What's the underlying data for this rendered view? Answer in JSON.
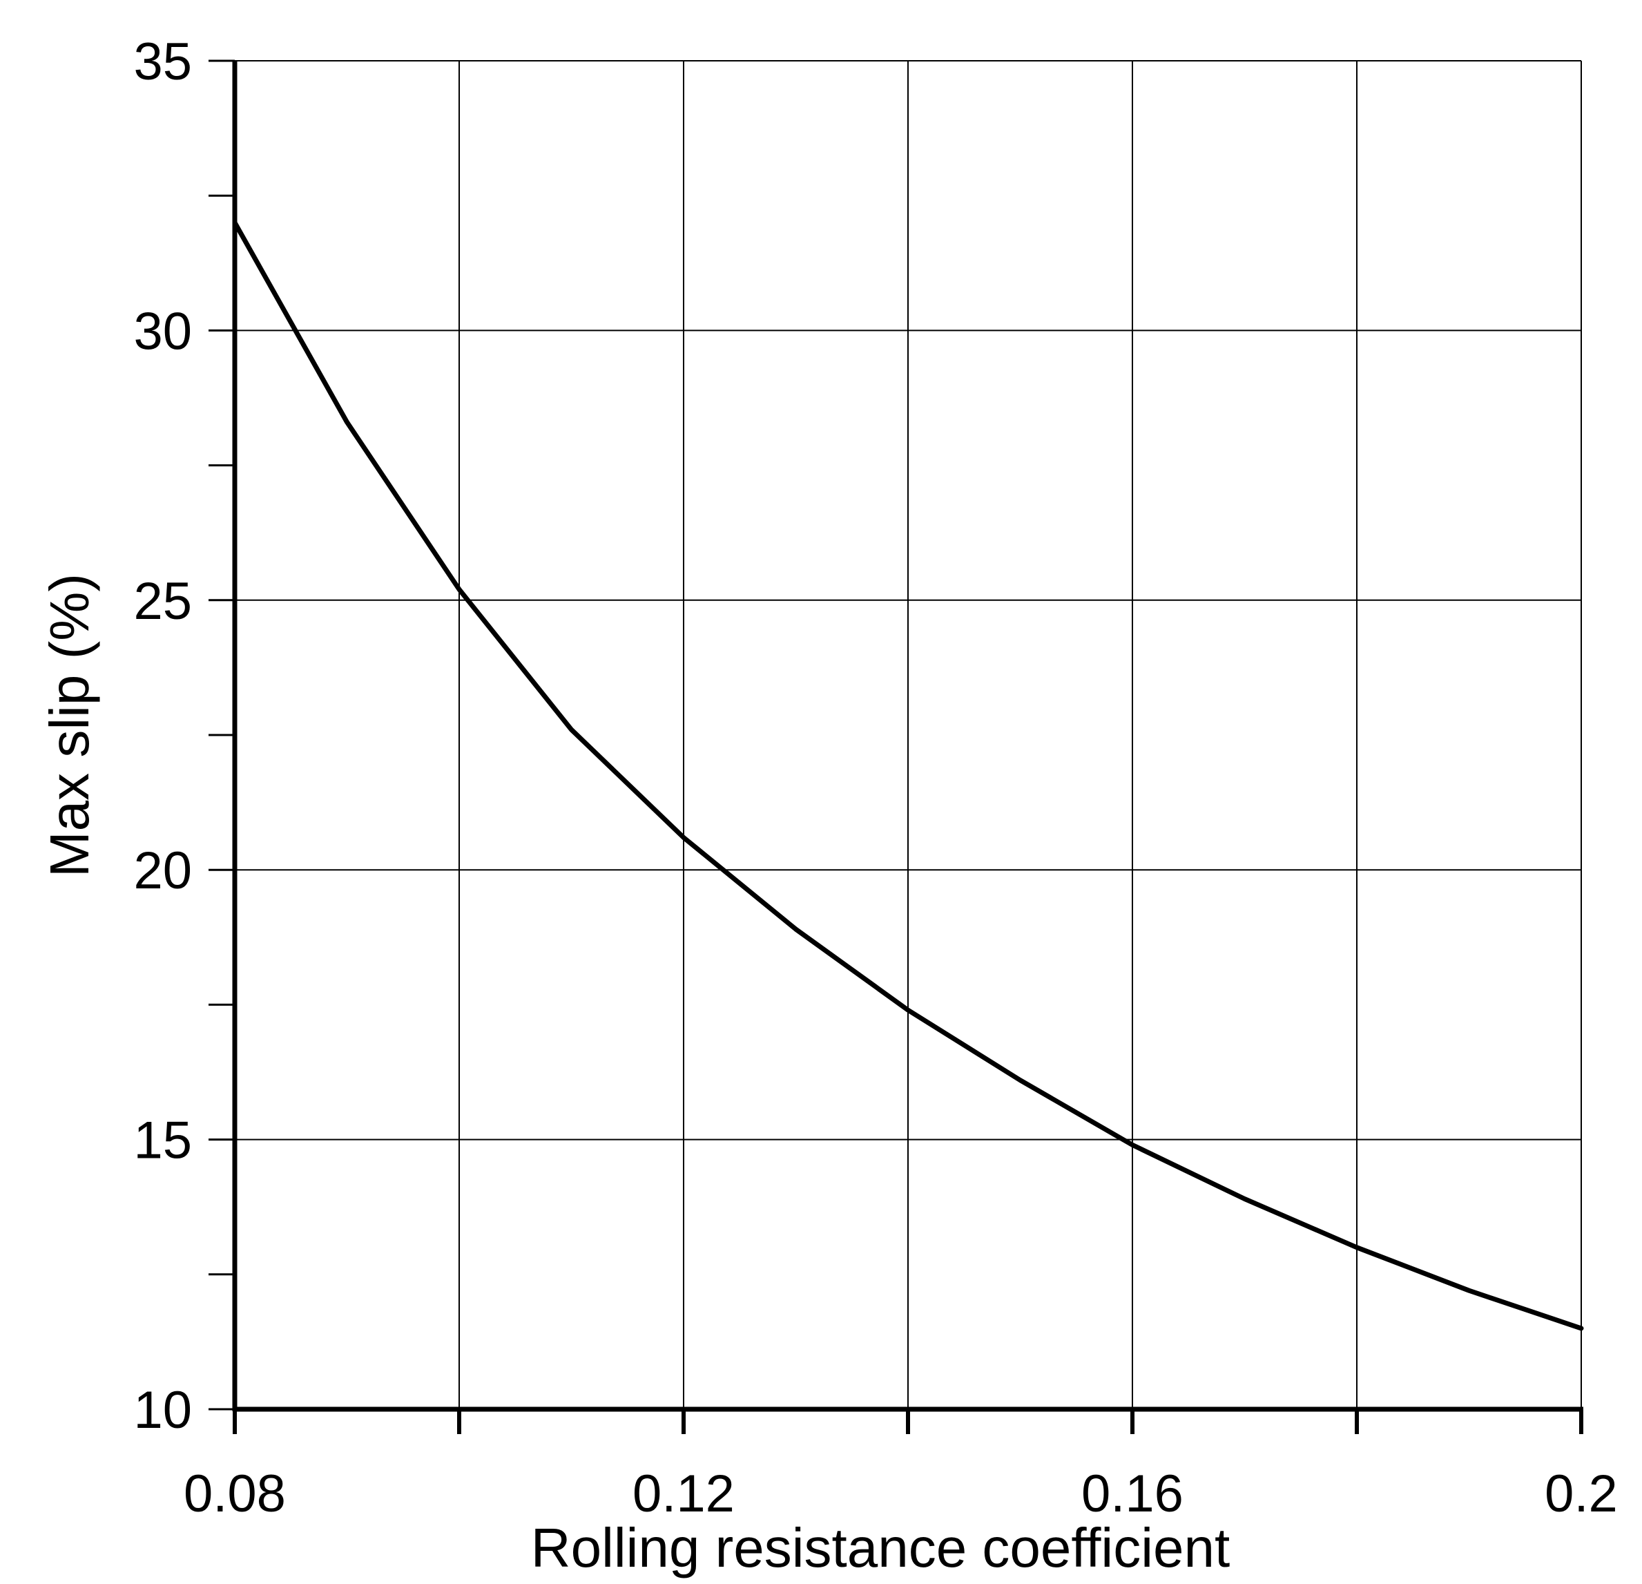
{
  "chart_data": {
    "type": "line",
    "title": "",
    "xlabel": "Rolling resistance coefficient",
    "ylabel": "Max slip (%)",
    "xlim": [
      0.08,
      0.2
    ],
    "ylim": [
      10,
      35
    ],
    "grid": true,
    "x_gridlines": [
      0.1,
      0.12,
      0.14,
      0.16,
      0.18,
      0.2
    ],
    "y_gridlines": [
      15,
      20,
      25,
      30,
      35
    ],
    "x_ticks": [
      0.08,
      0.1,
      0.12,
      0.14,
      0.16,
      0.18,
      0.2
    ],
    "x_tick_labels": [
      {
        "value": 0.08,
        "label": "0.08"
      },
      {
        "value": 0.12,
        "label": "0.12"
      },
      {
        "value": 0.16,
        "label": "0.16"
      },
      {
        "value": 0.2,
        "label": "0.2"
      }
    ],
    "y_ticks": [
      10,
      12.5,
      15,
      17.5,
      20,
      22.5,
      25,
      27.5,
      30,
      32.5,
      35
    ],
    "y_tick_labels": [
      {
        "value": 10,
        "label": "10"
      },
      {
        "value": 15,
        "label": "15"
      },
      {
        "value": 20,
        "label": "20"
      },
      {
        "value": 25,
        "label": "25"
      },
      {
        "value": 30,
        "label": "30"
      },
      {
        "value": 35,
        "label": "35"
      }
    ],
    "colors": {
      "line": "#000000",
      "grid": "#000000",
      "axis": "#000000",
      "background": "#ffffff"
    },
    "series": [
      {
        "x": [
          0.08,
          0.09,
          0.1,
          0.11,
          0.12,
          0.13,
          0.14,
          0.15,
          0.16,
          0.17,
          0.18,
          0.19,
          0.2
        ],
        "y": [
          32.0,
          28.3,
          25.2,
          22.6,
          20.6,
          18.9,
          17.4,
          16.1,
          14.9,
          13.9,
          13.0,
          12.2,
          11.5
        ]
      }
    ]
  }
}
